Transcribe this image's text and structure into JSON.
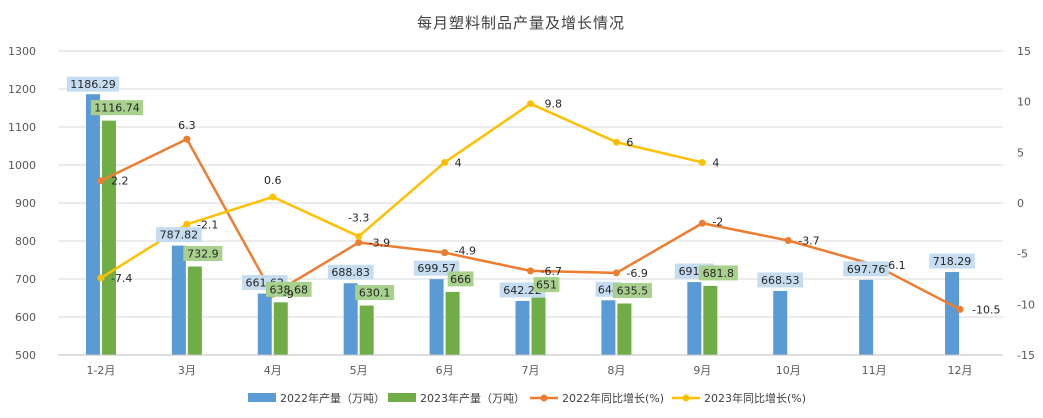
{
  "chart_data": {
    "type": "bar",
    "title": "每月塑料制品产量及增长情况",
    "categories": [
      "1-2月",
      "3月",
      "4月",
      "5月",
      "6月",
      "7月",
      "8月",
      "9月",
      "10月",
      "11月",
      "12月"
    ],
    "y_left": {
      "min": 500,
      "max": 1300,
      "step": 100
    },
    "y_right": {
      "min": -15,
      "max": 15,
      "step": 5
    },
    "grid": true,
    "legend_position": "bottom",
    "bar_series": [
      {
        "name": "2022年产量（万吨）",
        "color": "#5b9bd5",
        "label_bg": "#c6ddf1",
        "values": [
          1186.29,
          787.82,
          661.62,
          688.83,
          699.57,
          642.22,
          644.0,
          691.9,
          668.53,
          697.76,
          718.29
        ]
      },
      {
        "name": "2023年产量（万吨）",
        "color": "#70ad47",
        "label_bg": "#a9d18e",
        "values": [
          1116.74,
          732.9,
          638.68,
          630.1,
          666,
          651,
          635.5,
          681.8,
          null,
          null,
          null
        ]
      }
    ],
    "line_series": [
      {
        "name": "2022年同比增长(%)",
        "color": "#ed7d31",
        "values": [
          2.2,
          6.3,
          -9,
          -3.9,
          -4.9,
          -6.7,
          -6.9,
          -2,
          -3.7,
          -6.1,
          -10.5
        ]
      },
      {
        "name": "2023年同比增长(%)",
        "color": "#ffc000",
        "values": [
          -7.4,
          -2.1,
          0.6,
          -3.3,
          4,
          9.8,
          6,
          4,
          null,
          null,
          null
        ]
      }
    ]
  }
}
